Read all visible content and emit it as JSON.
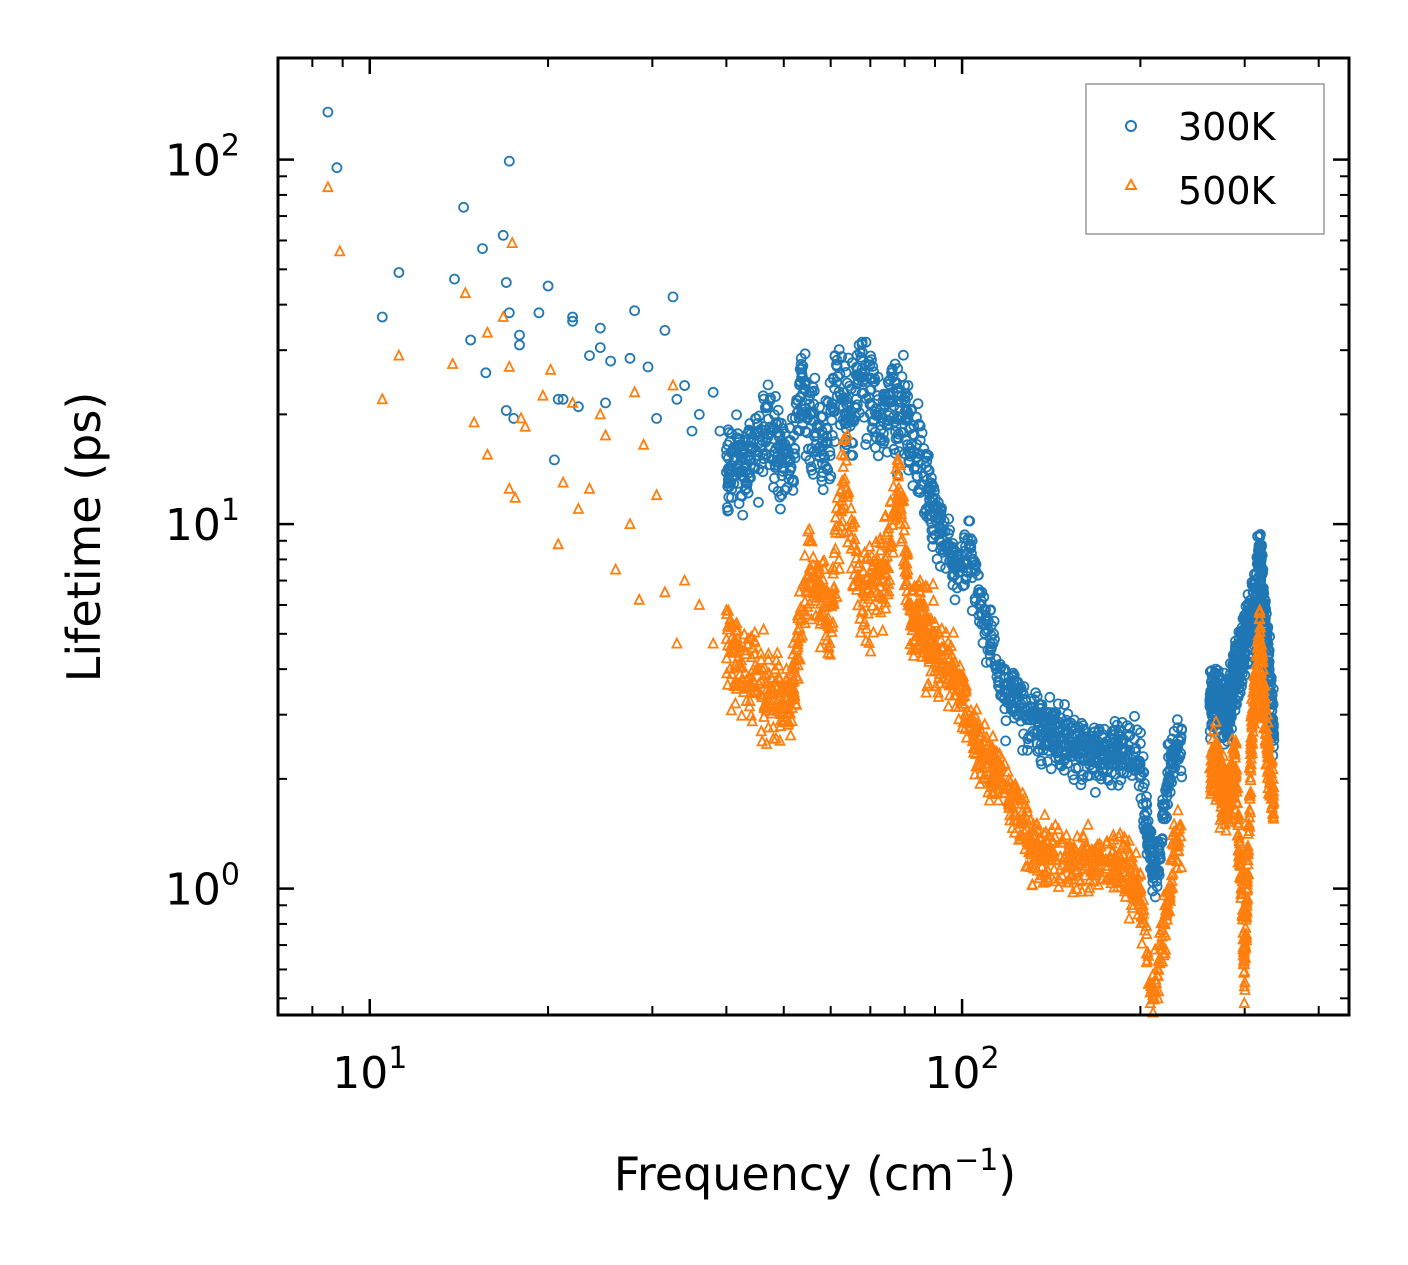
{
  "chart_data": {
    "type": "scatter",
    "title": "",
    "xlabel": "Frequency (cm",
    "xlabel_sup": "−1",
    "xlabel_end": ")",
    "ylabel": "Lifetime (ps)",
    "xscale": "log",
    "yscale": "log",
    "xlim": [
      7.0,
      450
    ],
    "ylim": [
      0.45,
      190
    ],
    "x_ticks": [
      {
        "value": 10,
        "base": "10",
        "exp": "1"
      },
      {
        "value": 100,
        "base": "10",
        "exp": "2"
      }
    ],
    "y_ticks": [
      {
        "value": 1,
        "base": "10",
        "exp": "0"
      },
      {
        "value": 10,
        "base": "10",
        "exp": "1"
      },
      {
        "value": 100,
        "base": "10",
        "exp": "2"
      }
    ],
    "legend_position": "top-right",
    "series": [
      {
        "name": "300K",
        "marker": "circle",
        "color": "#1f77b4",
        "points": [
          [
            8.5,
            135
          ],
          [
            8.8,
            95
          ],
          [
            10.5,
            37
          ],
          [
            11.2,
            49
          ],
          [
            13.9,
            47
          ],
          [
            14.4,
            74
          ],
          [
            14.8,
            32
          ],
          [
            15.5,
            57
          ],
          [
            15.7,
            26
          ],
          [
            16.8,
            62
          ],
          [
            17,
            46
          ],
          [
            17,
            20.5
          ],
          [
            17.2,
            38
          ],
          [
            17.2,
            99
          ],
          [
            17.5,
            19.5
          ],
          [
            17.9,
            33
          ],
          [
            17.9,
            31
          ],
          [
            19.3,
            38
          ],
          [
            20,
            45
          ],
          [
            20.5,
            15
          ],
          [
            20.8,
            22
          ],
          [
            21.2,
            22
          ],
          [
            22,
            37
          ],
          [
            22,
            36
          ],
          [
            22.5,
            21
          ],
          [
            23.5,
            29
          ],
          [
            24.5,
            34.5
          ],
          [
            24.5,
            30.5
          ],
          [
            25,
            21.5
          ],
          [
            25.5,
            28
          ],
          [
            27.5,
            28.5
          ],
          [
            28,
            38.5
          ],
          [
            29.5,
            27
          ],
          [
            30.5,
            19.5
          ],
          [
            31.5,
            34
          ],
          [
            32.5,
            42
          ],
          [
            33,
            22
          ],
          [
            34,
            24
          ],
          [
            35,
            18
          ],
          [
            36,
            20
          ],
          [
            38,
            23
          ],
          [
            39,
            18
          ],
          [
            40,
            16
          ],
          [
            43,
            17
          ],
          [
            47,
            21
          ],
          [
            49,
            19
          ],
          [
            52,
            17.5
          ],
          [
            53.5,
            28.5
          ],
          [
            55,
            22
          ],
          [
            58,
            18
          ],
          [
            60,
            20.5
          ],
          [
            61,
            29
          ],
          [
            65,
            23.5
          ],
          [
            67,
            31
          ],
          [
            72,
            22.5
          ],
          [
            74,
            21
          ],
          [
            76,
            26
          ],
          [
            78,
            22.5
          ],
          [
            80,
            24
          ],
          [
            82,
            20.5
          ],
          [
            85,
            17
          ],
          [
            88,
            14
          ],
          [
            92,
            11
          ],
          [
            97,
            8.5
          ],
          [
            103,
            10.2
          ],
          [
            104,
            9
          ],
          [
            108,
            6.5
          ],
          [
            113,
            5
          ],
          [
            118,
            4
          ],
          [
            122,
            3.9
          ],
          [
            128,
            3.3
          ],
          [
            135,
            3.2
          ],
          [
            142,
            3
          ],
          [
            150,
            2.9
          ],
          [
            160,
            2.8
          ],
          [
            170,
            2.7
          ],
          [
            180,
            2.7
          ],
          [
            190,
            2.8
          ],
          [
            200,
            2.5
          ],
          [
            205,
            1.7
          ],
          [
            212,
            1.2
          ],
          [
            218,
            1.7
          ],
          [
            224,
            2.5
          ],
          [
            228,
            2.7
          ],
          [
            268,
            4
          ],
          [
            280,
            3.5
          ],
          [
            290,
            4.5
          ],
          [
            300,
            5.5
          ],
          [
            310,
            6.5
          ],
          [
            318,
            9.3
          ],
          [
            322,
            7.5
          ],
          [
            330,
            4.5
          ],
          [
            335,
            3.2
          ]
        ]
      },
      {
        "name": "500K",
        "marker": "triangle",
        "color": "#ff7f0e",
        "points": [
          [
            8.5,
            84
          ],
          [
            8.9,
            56
          ],
          [
            10.5,
            22
          ],
          [
            11.2,
            29
          ],
          [
            13.8,
            27.5
          ],
          [
            14.5,
            43
          ],
          [
            15,
            19
          ],
          [
            15.8,
            33.5
          ],
          [
            15.8,
            15.5
          ],
          [
            16.8,
            37
          ],
          [
            17.2,
            27
          ],
          [
            17.2,
            12.5
          ],
          [
            17.4,
            59
          ],
          [
            17.6,
            11.8
          ],
          [
            18,
            19.5
          ],
          [
            18.3,
            18.5
          ],
          [
            19.6,
            22.5
          ],
          [
            20.2,
            26.5
          ],
          [
            20.8,
            8.8
          ],
          [
            21.2,
            13
          ],
          [
            22,
            21.5
          ],
          [
            22.5,
            11
          ],
          [
            23.5,
            12.5
          ],
          [
            24.5,
            20
          ],
          [
            25,
            17.5
          ],
          [
            26,
            7.5
          ],
          [
            27.5,
            10
          ],
          [
            28,
            23
          ],
          [
            28.5,
            6.2
          ],
          [
            29,
            16.5
          ],
          [
            30.5,
            12
          ],
          [
            31.5,
            6.5
          ],
          [
            32.5,
            24
          ],
          [
            33,
            4.7
          ],
          [
            34,
            7
          ],
          [
            36,
            6
          ],
          [
            38,
            4.7
          ],
          [
            40,
            5.8
          ],
          [
            43,
            4.5
          ],
          [
            46,
            4
          ],
          [
            49,
            3.8
          ],
          [
            52,
            4
          ],
          [
            55,
            9
          ],
          [
            60,
            6
          ],
          [
            63,
            17
          ],
          [
            67,
            7
          ],
          [
            72,
            8
          ],
          [
            75,
            9.5
          ],
          [
            78,
            15
          ],
          [
            80,
            10
          ],
          [
            82,
            6
          ],
          [
            85,
            6.5
          ],
          [
            90,
            5
          ],
          [
            95,
            4.5
          ],
          [
            100,
            3.8
          ],
          [
            105,
            3
          ],
          [
            110,
            2.6
          ],
          [
            118,
            2.2
          ],
          [
            125,
            1.8
          ],
          [
            132,
            1.5
          ],
          [
            140,
            1.4
          ],
          [
            150,
            1.4
          ],
          [
            160,
            1.4
          ],
          [
            170,
            1.3
          ],
          [
            180,
            1.4
          ],
          [
            190,
            1.3
          ],
          [
            200,
            1.1
          ],
          [
            205,
            0.75
          ],
          [
            210,
            0.58
          ],
          [
            215,
            0.7
          ],
          [
            220,
            0.9
          ],
          [
            225,
            1.2
          ],
          [
            228,
            1.5
          ],
          [
            268,
            2.5
          ],
          [
            280,
            2
          ],
          [
            290,
            2.5
          ],
          [
            300,
            0.68
          ],
          [
            308,
            3
          ],
          [
            318,
            5.8
          ],
          [
            322,
            4
          ],
          [
            330,
            2.5
          ],
          [
            335,
            2
          ]
        ]
      }
    ]
  }
}
